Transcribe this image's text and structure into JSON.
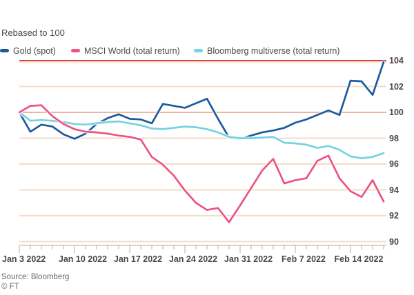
{
  "subtitle": "Rebased to 100",
  "legend": [
    {
      "label": "Gold (spot)",
      "color": "#1d5a9b"
    },
    {
      "label": "MSCI World (total return)",
      "color": "#ed5285"
    },
    {
      "label": "Bloomberg multiverse (total return)",
      "color": "#76d3e0"
    }
  ],
  "footer": {
    "source": "Source: Bloomberg",
    "copyright": "© FT"
  },
  "colors": {
    "background": "#ffffff",
    "grid": "#f2dccb",
    "grid_baseline": "#f0b5a0",
    "grid_top": "#d7402e",
    "grid_top_under": "#f5e3d3",
    "axis": "#d2c8bd",
    "tick": "#b7aea3",
    "text": "#4c4844",
    "footer_text": "#6e6761",
    "line_casing": "#ffffff"
  },
  "chart_data": {
    "type": "line",
    "title": "",
    "subtitle": "Rebased to 100",
    "xlabel": "",
    "ylabel": "",
    "ylim": [
      90,
      104
    ],
    "yticks": [
      104,
      102,
      100,
      98,
      96,
      94,
      92,
      90
    ],
    "grid": "horizontal",
    "legend_position": "top",
    "x_tick_labels": [
      "Jan 3 2022",
      "Jan 10 2022",
      "Jan 17 2022",
      "Jan 24 2022",
      "Jan 31 2022",
      "Feb 7 2022",
      "Feb 14 2022"
    ],
    "x": [
      "Jan 3",
      "Jan 4",
      "Jan 5",
      "Jan 6",
      "Jan 7",
      "Jan 10",
      "Jan 11",
      "Jan 12",
      "Jan 13",
      "Jan 14",
      "Jan 17",
      "Jan 18",
      "Jan 19",
      "Jan 20",
      "Jan 21",
      "Jan 24",
      "Jan 25",
      "Jan 26",
      "Jan 27",
      "Jan 28",
      "Jan 31",
      "Feb 1",
      "Feb 2",
      "Feb 3",
      "Feb 4",
      "Feb 7",
      "Feb 8",
      "Feb 9",
      "Feb 10",
      "Feb 11",
      "Feb 14",
      "Feb 15",
      "Feb 16",
      "Feb 17"
    ],
    "series": [
      {
        "name": "Gold (spot)",
        "color": "#1d5a9b",
        "values": [
          100,
          98.5,
          99.05,
          98.9,
          98.3,
          97.95,
          98.35,
          99.1,
          99.55,
          99.85,
          99.5,
          99.45,
          99.15,
          100.65,
          100.5,
          100.35,
          100.7,
          101.05,
          99.5,
          98.05,
          97.95,
          98.2,
          98.45,
          98.6,
          98.8,
          99.2,
          99.45,
          99.8,
          100.15,
          99.8,
          102.45,
          102.4,
          101.35,
          103.9
        ]
      },
      {
        "name": "MSCI World (total return)",
        "color": "#ed5285",
        "values": [
          100,
          100.5,
          100.55,
          99.7,
          99.1,
          98.7,
          98.5,
          98.45,
          98.35,
          98.2,
          98.1,
          97.9,
          96.55,
          95.95,
          95.1,
          93.95,
          93.0,
          92.45,
          92.6,
          91.5,
          92.8,
          94.15,
          95.5,
          96.4,
          94.5,
          94.75,
          94.9,
          96.25,
          96.65,
          94.9,
          93.9,
          93.45,
          94.75,
          93.1
        ]
      },
      {
        "name": "Bloomberg multiverse (total return)",
        "color": "#76d3e0",
        "values": [
          100,
          99.35,
          99.4,
          99.35,
          99.25,
          99.1,
          99.05,
          99.15,
          99.25,
          99.3,
          99.15,
          99.0,
          98.75,
          98.7,
          98.8,
          98.9,
          98.85,
          98.7,
          98.45,
          98.1,
          98.0,
          98.0,
          98.05,
          98.1,
          97.65,
          97.6,
          97.5,
          97.25,
          97.4,
          97.1,
          96.6,
          96.45,
          96.55,
          96.85
        ]
      }
    ]
  }
}
